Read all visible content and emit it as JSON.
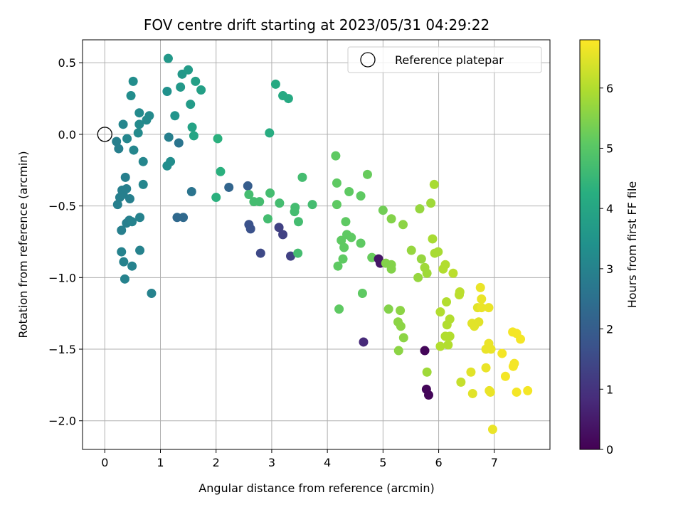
{
  "chart_data": {
    "type": "scatter",
    "title": "FOV centre drift starting at 2023/05/31 04:29:22",
    "xlabel": "Angular distance from reference (arcmin)",
    "ylabel": "Rotation from reference (arcmin)",
    "xlim": [
      -0.4,
      8.0
    ],
    "ylim": [
      -2.2,
      0.66
    ],
    "xticks": [
      0,
      1,
      2,
      3,
      4,
      5,
      6,
      7
    ],
    "xtick_labels": [
      "0",
      "1",
      "2",
      "3",
      "4",
      "5",
      "6",
      "7"
    ],
    "yticks": [
      0.5,
      0.0,
      -0.5,
      -1.0,
      -1.5,
      -2.0
    ],
    "ytick_labels": [
      "0.5",
      "0.0",
      "−0.5",
      "−1.0",
      "−1.5",
      "−2.0"
    ],
    "grid": true,
    "legend": {
      "position": "top-right",
      "entries": [
        "Reference platepar"
      ]
    },
    "reference_point": {
      "x": 0.0,
      "y": 0.0,
      "label": "Reference platepar"
    },
    "colorbar": {
      "label": "Hours from first FF file",
      "colormap": "viridis",
      "min": 0,
      "max": 6.8,
      "ticks": [
        0,
        1,
        2,
        3,
        4,
        5,
        6
      ],
      "tick_labels": [
        "0",
        "1",
        "2",
        "3",
        "4",
        "5",
        "6"
      ]
    },
    "points": [
      {
        "x": 0.21,
        "y": -0.05,
        "c": 2.9
      },
      {
        "x": 0.25,
        "y": -0.1,
        "c": 2.9
      },
      {
        "x": 0.31,
        "y": -0.39,
        "c": 2.9
      },
      {
        "x": 0.23,
        "y": -0.49,
        "c": 2.9
      },
      {
        "x": 0.27,
        "y": -0.44,
        "c": 2.9
      },
      {
        "x": 0.33,
        "y": -0.42,
        "c": 2.9
      },
      {
        "x": 0.37,
        "y": -0.3,
        "c": 2.9
      },
      {
        "x": 0.39,
        "y": -0.38,
        "c": 2.9
      },
      {
        "x": 0.39,
        "y": -0.62,
        "c": 2.9
      },
      {
        "x": 0.44,
        "y": -0.6,
        "c": 2.9
      },
      {
        "x": 0.45,
        "y": -0.45,
        "c": 2.9
      },
      {
        "x": 0.3,
        "y": -0.67,
        "c": 2.9
      },
      {
        "x": 0.3,
        "y": -0.82,
        "c": 3.0
      },
      {
        "x": 0.34,
        "y": -0.89,
        "c": 3.0
      },
      {
        "x": 0.36,
        "y": -1.01,
        "c": 3.0
      },
      {
        "x": 0.49,
        "y": -0.92,
        "c": 3.0
      },
      {
        "x": 0.49,
        "y": -0.61,
        "c": 3.0
      },
      {
        "x": 0.63,
        "y": -0.58,
        "c": 3.0
      },
      {
        "x": 0.63,
        "y": -0.81,
        "c": 3.0
      },
      {
        "x": 0.84,
        "y": -1.11,
        "c": 3.0
      },
      {
        "x": 0.69,
        "y": -0.35,
        "c": 3.1
      },
      {
        "x": 0.69,
        "y": -0.19,
        "c": 3.1
      },
      {
        "x": 0.52,
        "y": -0.11,
        "c": 3.1
      },
      {
        "x": 0.33,
        "y": 0.07,
        "c": 3.1
      },
      {
        "x": 0.4,
        "y": -0.03,
        "c": 3.1
      },
      {
        "x": 0.6,
        "y": 0.01,
        "c": 3.2
      },
      {
        "x": 0.62,
        "y": 0.07,
        "c": 3.2
      },
      {
        "x": 0.62,
        "y": 0.15,
        "c": 3.2
      },
      {
        "x": 0.75,
        "y": 0.1,
        "c": 3.2
      },
      {
        "x": 0.8,
        "y": 0.13,
        "c": 3.2
      },
      {
        "x": 0.47,
        "y": 0.27,
        "c": 3.3
      },
      {
        "x": 0.51,
        "y": 0.37,
        "c": 3.3
      },
      {
        "x": 1.12,
        "y": 0.3,
        "c": 3.4
      },
      {
        "x": 1.15,
        "y": -0.02,
        "c": 2.9
      },
      {
        "x": 1.18,
        "y": -0.19,
        "c": 3.3
      },
      {
        "x": 1.12,
        "y": -0.22,
        "c": 3.3
      },
      {
        "x": 1.33,
        "y": -0.06,
        "c": 2.6
      },
      {
        "x": 1.56,
        "y": -0.4,
        "c": 2.6
      },
      {
        "x": 1.3,
        "y": -0.58,
        "c": 2.3
      },
      {
        "x": 1.41,
        "y": -0.58,
        "c": 2.3
      },
      {
        "x": 1.26,
        "y": 0.13,
        "c": 3.5
      },
      {
        "x": 1.36,
        "y": 0.33,
        "c": 3.6
      },
      {
        "x": 1.39,
        "y": 0.42,
        "c": 3.6
      },
      {
        "x": 1.14,
        "y": 0.53,
        "c": 3.6
      },
      {
        "x": 1.5,
        "y": 0.45,
        "c": 3.7
      },
      {
        "x": 1.54,
        "y": 0.21,
        "c": 3.7
      },
      {
        "x": 1.63,
        "y": 0.37,
        "c": 3.8
      },
      {
        "x": 1.73,
        "y": 0.31,
        "c": 3.8
      },
      {
        "x": 1.57,
        "y": 0.05,
        "c": 3.9
      },
      {
        "x": 1.6,
        "y": -0.01,
        "c": 4.0
      },
      {
        "x": 2.0,
        "y": -0.44,
        "c": 4.3
      },
      {
        "x": 2.03,
        "y": -0.03,
        "c": 4.3
      },
      {
        "x": 2.08,
        "y": -0.26,
        "c": 4.3
      },
      {
        "x": 2.23,
        "y": -0.37,
        "c": 2.2
      },
      {
        "x": 2.57,
        "y": -0.36,
        "c": 2.0
      },
      {
        "x": 2.59,
        "y": -0.63,
        "c": 1.7
      },
      {
        "x": 2.62,
        "y": -0.66,
        "c": 1.7
      },
      {
        "x": 2.8,
        "y": -0.83,
        "c": 1.5
      },
      {
        "x": 2.59,
        "y": -0.42,
        "c": 4.7
      },
      {
        "x": 2.68,
        "y": -0.47,
        "c": 4.7
      },
      {
        "x": 2.78,
        "y": -0.47,
        "c": 4.7
      },
      {
        "x": 2.93,
        "y": -0.59,
        "c": 4.7
      },
      {
        "x": 2.97,
        "y": -0.41,
        "c": 4.7
      },
      {
        "x": 2.96,
        "y": 0.01,
        "c": 4.2
      },
      {
        "x": 3.07,
        "y": 0.35,
        "c": 4.1
      },
      {
        "x": 3.2,
        "y": 0.27,
        "c": 4.1
      },
      {
        "x": 3.3,
        "y": 0.25,
        "c": 4.1
      },
      {
        "x": 3.14,
        "y": -0.48,
        "c": 4.7
      },
      {
        "x": 3.13,
        "y": -0.65,
        "c": 1.3
      },
      {
        "x": 3.2,
        "y": -0.7,
        "c": 1.3
      },
      {
        "x": 3.34,
        "y": -0.85,
        "c": 1.3
      },
      {
        "x": 3.42,
        "y": -0.51,
        "c": 4.7
      },
      {
        "x": 3.41,
        "y": -0.54,
        "c": 4.7
      },
      {
        "x": 3.48,
        "y": -0.61,
        "c": 4.7
      },
      {
        "x": 3.47,
        "y": -0.83,
        "c": 4.7
      },
      {
        "x": 3.55,
        "y": -0.3,
        "c": 4.7
      },
      {
        "x": 3.73,
        "y": -0.49,
        "c": 4.7
      },
      {
        "x": 4.15,
        "y": -0.15,
        "c": 5.1
      },
      {
        "x": 4.17,
        "y": -0.34,
        "c": 5.1
      },
      {
        "x": 4.17,
        "y": -0.49,
        "c": 5.1
      },
      {
        "x": 4.19,
        "y": -0.92,
        "c": 5.1
      },
      {
        "x": 4.21,
        "y": -1.22,
        "c": 5.1
      },
      {
        "x": 4.25,
        "y": -0.74,
        "c": 5.1
      },
      {
        "x": 4.28,
        "y": -0.87,
        "c": 5.1
      },
      {
        "x": 4.3,
        "y": -0.79,
        "c": 5.1
      },
      {
        "x": 4.33,
        "y": -0.61,
        "c": 5.1
      },
      {
        "x": 4.35,
        "y": -0.7,
        "c": 5.1
      },
      {
        "x": 4.39,
        "y": -0.4,
        "c": 5.1
      },
      {
        "x": 4.43,
        "y": -0.72,
        "c": 5.1
      },
      {
        "x": 4.6,
        "y": -0.43,
        "c": 5.1
      },
      {
        "x": 4.6,
        "y": -0.76,
        "c": 5.1
      },
      {
        "x": 4.63,
        "y": -1.11,
        "c": 5.1
      },
      {
        "x": 4.65,
        "y": -1.45,
        "c": 0.8
      },
      {
        "x": 4.72,
        "y": -0.28,
        "c": 5.2
      },
      {
        "x": 4.8,
        "y": -0.86,
        "c": 5.2
      },
      {
        "x": 4.92,
        "y": -0.87,
        "c": 0.4
      },
      {
        "x": 4.95,
        "y": -0.9,
        "c": 0.4
      },
      {
        "x": 5.0,
        "y": -0.53,
        "c": 5.3
      },
      {
        "x": 5.05,
        "y": -0.9,
        "c": 5.5
      },
      {
        "x": 5.1,
        "y": -1.22,
        "c": 5.5
      },
      {
        "x": 5.15,
        "y": -0.59,
        "c": 5.5
      },
      {
        "x": 5.15,
        "y": -0.91,
        "c": 5.5
      },
      {
        "x": 5.15,
        "y": -0.94,
        "c": 5.5
      },
      {
        "x": 5.27,
        "y": -1.31,
        "c": 5.6
      },
      {
        "x": 5.28,
        "y": -1.51,
        "c": 5.6
      },
      {
        "x": 5.31,
        "y": -1.23,
        "c": 5.6
      },
      {
        "x": 5.32,
        "y": -1.34,
        "c": 5.6
      },
      {
        "x": 5.36,
        "y": -0.63,
        "c": 5.6
      },
      {
        "x": 5.37,
        "y": -1.42,
        "c": 5.6
      },
      {
        "x": 5.51,
        "y": -0.81,
        "c": 5.7
      },
      {
        "x": 5.63,
        "y": -1.0,
        "c": 5.7
      },
      {
        "x": 5.66,
        "y": -0.52,
        "c": 5.7
      },
      {
        "x": 5.69,
        "y": -0.87,
        "c": 5.7
      },
      {
        "x": 5.75,
        "y": -0.93,
        "c": 5.8
      },
      {
        "x": 5.75,
        "y": -1.51,
        "c": 0.1
      },
      {
        "x": 5.78,
        "y": -1.78,
        "c": 0.1
      },
      {
        "x": 5.82,
        "y": -1.82,
        "c": 0.1
      },
      {
        "x": 5.79,
        "y": -1.66,
        "c": 5.8
      },
      {
        "x": 5.79,
        "y": -0.97,
        "c": 5.8
      },
      {
        "x": 5.86,
        "y": -0.48,
        "c": 5.8
      },
      {
        "x": 5.89,
        "y": -0.73,
        "c": 5.9
      },
      {
        "x": 5.92,
        "y": -0.35,
        "c": 5.9
      },
      {
        "x": 5.93,
        "y": -0.83,
        "c": 5.9
      },
      {
        "x": 5.99,
        "y": -0.82,
        "c": 5.9
      },
      {
        "x": 6.03,
        "y": -1.24,
        "c": 6.0
      },
      {
        "x": 6.03,
        "y": -1.48,
        "c": 6.0
      },
      {
        "x": 6.08,
        "y": -0.94,
        "c": 6.0
      },
      {
        "x": 6.12,
        "y": -0.91,
        "c": 6.0
      },
      {
        "x": 6.12,
        "y": -1.41,
        "c": 6.0
      },
      {
        "x": 6.14,
        "y": -1.17,
        "c": 6.0
      },
      {
        "x": 6.15,
        "y": -1.33,
        "c": 6.0
      },
      {
        "x": 6.17,
        "y": -1.47,
        "c": 6.0
      },
      {
        "x": 6.2,
        "y": -1.41,
        "c": 6.0
      },
      {
        "x": 6.2,
        "y": -1.29,
        "c": 6.0
      },
      {
        "x": 6.26,
        "y": -0.97,
        "c": 6.1
      },
      {
        "x": 6.37,
        "y": -1.12,
        "c": 6.1
      },
      {
        "x": 6.38,
        "y": -1.1,
        "c": 6.1
      },
      {
        "x": 6.4,
        "y": -1.73,
        "c": 6.2
      },
      {
        "x": 6.58,
        "y": -1.66,
        "c": 6.5
      },
      {
        "x": 6.6,
        "y": -1.32,
        "c": 6.5
      },
      {
        "x": 6.61,
        "y": -1.81,
        "c": 6.5
      },
      {
        "x": 6.64,
        "y": -1.34,
        "c": 6.5
      },
      {
        "x": 6.7,
        "y": -1.21,
        "c": 6.5
      },
      {
        "x": 6.72,
        "y": -1.31,
        "c": 6.5
      },
      {
        "x": 6.75,
        "y": -1.07,
        "c": 6.6
      },
      {
        "x": 6.77,
        "y": -1.15,
        "c": 6.6
      },
      {
        "x": 6.77,
        "y": -1.21,
        "c": 6.6
      },
      {
        "x": 6.85,
        "y": -1.63,
        "c": 6.6
      },
      {
        "x": 6.85,
        "y": -1.5,
        "c": 6.6
      },
      {
        "x": 6.9,
        "y": -1.46,
        "c": 6.6
      },
      {
        "x": 6.9,
        "y": -1.21,
        "c": 6.6
      },
      {
        "x": 6.91,
        "y": -1.79,
        "c": 6.6
      },
      {
        "x": 6.93,
        "y": -1.8,
        "c": 6.6
      },
      {
        "x": 6.94,
        "y": -1.5,
        "c": 6.6
      },
      {
        "x": 6.97,
        "y": -2.06,
        "c": 6.6
      },
      {
        "x": 7.14,
        "y": -1.53,
        "c": 6.7
      },
      {
        "x": 7.2,
        "y": -1.69,
        "c": 6.7
      },
      {
        "x": 7.33,
        "y": -1.38,
        "c": 6.7
      },
      {
        "x": 7.34,
        "y": -1.62,
        "c": 6.7
      },
      {
        "x": 7.36,
        "y": -1.6,
        "c": 6.7
      },
      {
        "x": 7.4,
        "y": -1.39,
        "c": 6.7
      },
      {
        "x": 7.4,
        "y": -1.8,
        "c": 6.7
      },
      {
        "x": 7.47,
        "y": -1.43,
        "c": 6.7
      },
      {
        "x": 7.6,
        "y": -1.79,
        "c": 6.7
      }
    ]
  }
}
